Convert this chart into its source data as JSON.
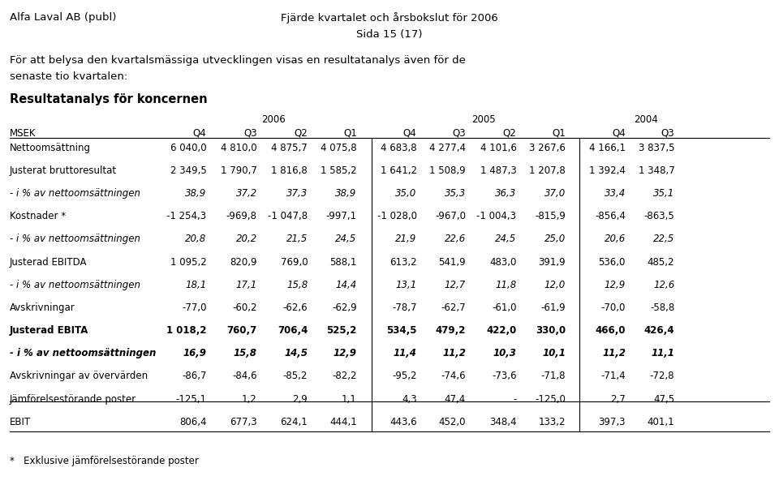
{
  "header_top_left": "Alfa Laval AB (publ)",
  "header_top_right_line1": "Fjärde kvartalet och årsbokslut för 2006",
  "header_top_right_line2": "Sida 15 (17)",
  "intro_line1": "För att belysa den kvartalsmässiga utvecklingen visas en resultatanalys även för de",
  "intro_line2": "senaste tio kvartalen:",
  "section_title": "Resultatanalys för koncernen",
  "year_headers": [
    "2006",
    "2005",
    "2004"
  ],
  "col_headers": [
    "MSEK",
    "Q4",
    "Q3",
    "Q2",
    "Q1",
    "Q4",
    "Q3",
    "Q2",
    "Q1",
    "Q4",
    "Q3"
  ],
  "rows": [
    {
      "label": "Nettoomsättning",
      "bold": false,
      "italic": false,
      "values": [
        "6 040,0",
        "4 810,0",
        "4 875,7",
        "4 075,8",
        "4 683,8",
        "4 277,4",
        "4 101,6",
        "3 267,6",
        "4 166,1",
        "3 837,5"
      ]
    },
    {
      "label": "Justerat bruttoresultat",
      "bold": false,
      "italic": false,
      "values": [
        "2 349,5",
        "1 790,7",
        "1 816,8",
        "1 585,2",
        "1 641,2",
        "1 508,9",
        "1 487,3",
        "1 207,8",
        "1 392,4",
        "1 348,7"
      ]
    },
    {
      "label": "- i % av nettoomsättningen",
      "bold": false,
      "italic": true,
      "values": [
        "38,9",
        "37,2",
        "37,3",
        "38,9",
        "35,0",
        "35,3",
        "36,3",
        "37,0",
        "33,4",
        "35,1"
      ]
    },
    {
      "label": "Kostnader *",
      "bold": false,
      "italic": false,
      "values": [
        "-1 254,3",
        "-969,8",
        "-1 047,8",
        "-997,1",
        "-1 028,0",
        "-967,0",
        "-1 004,3",
        "-815,9",
        "-856,4",
        "-863,5"
      ]
    },
    {
      "label": "- i % av nettoomsättningen",
      "bold": false,
      "italic": true,
      "values": [
        "20,8",
        "20,2",
        "21,5",
        "24,5",
        "21,9",
        "22,6",
        "24,5",
        "25,0",
        "20,6",
        "22,5"
      ]
    },
    {
      "label": "Justerad EBITDA",
      "bold": false,
      "italic": false,
      "values": [
        "1 095,2",
        "820,9",
        "769,0",
        "588,1",
        "613,2",
        "541,9",
        "483,0",
        "391,9",
        "536,0",
        "485,2"
      ]
    },
    {
      "label": "- i % av nettoomsättningen",
      "bold": false,
      "italic": true,
      "values": [
        "18,1",
        "17,1",
        "15,8",
        "14,4",
        "13,1",
        "12,7",
        "11,8",
        "12,0",
        "12,9",
        "12,6"
      ]
    },
    {
      "label": "Avskrivningar",
      "bold": false,
      "italic": false,
      "values": [
        "-77,0",
        "-60,2",
        "-62,6",
        "-62,9",
        "-78,7",
        "-62,7",
        "-61,0",
        "-61,9",
        "-70,0",
        "-58,8"
      ]
    },
    {
      "label": "Justerad EBITA",
      "bold": true,
      "italic": false,
      "values": [
        "1 018,2",
        "760,7",
        "706,4",
        "525,2",
        "534,5",
        "479,2",
        "422,0",
        "330,0",
        "466,0",
        "426,4"
      ]
    },
    {
      "label": "- i % av nettoomsättningen",
      "bold": true,
      "italic": true,
      "values": [
        "16,9",
        "15,8",
        "14,5",
        "12,9",
        "11,4",
        "11,2",
        "10,3",
        "10,1",
        "11,2",
        "11,1"
      ]
    },
    {
      "label": "Avskrivningar av övervärden",
      "bold": false,
      "italic": false,
      "values": [
        "-86,7",
        "-84,6",
        "-85,2",
        "-82,2",
        "-95,2",
        "-74,6",
        "-73,6",
        "-71,8",
        "-71,4",
        "-72,8"
      ]
    },
    {
      "label": "Jämförelsestörande poster",
      "bold": false,
      "italic": false,
      "values": [
        "-125,1",
        "1,2",
        "2,9",
        "1,1",
        "4,3",
        "47,4",
        "-",
        "-125,0",
        "2,7",
        "47,5"
      ]
    },
    {
      "label": "EBIT",
      "bold": false,
      "italic": false,
      "values": [
        "806,4",
        "677,3",
        "624,1",
        "444,1",
        "443,6",
        "452,0",
        "348,4",
        "133,2",
        "397,3",
        "401,1"
      ]
    }
  ],
  "footnote": "*   Exklusive jämförelsestörande poster"
}
